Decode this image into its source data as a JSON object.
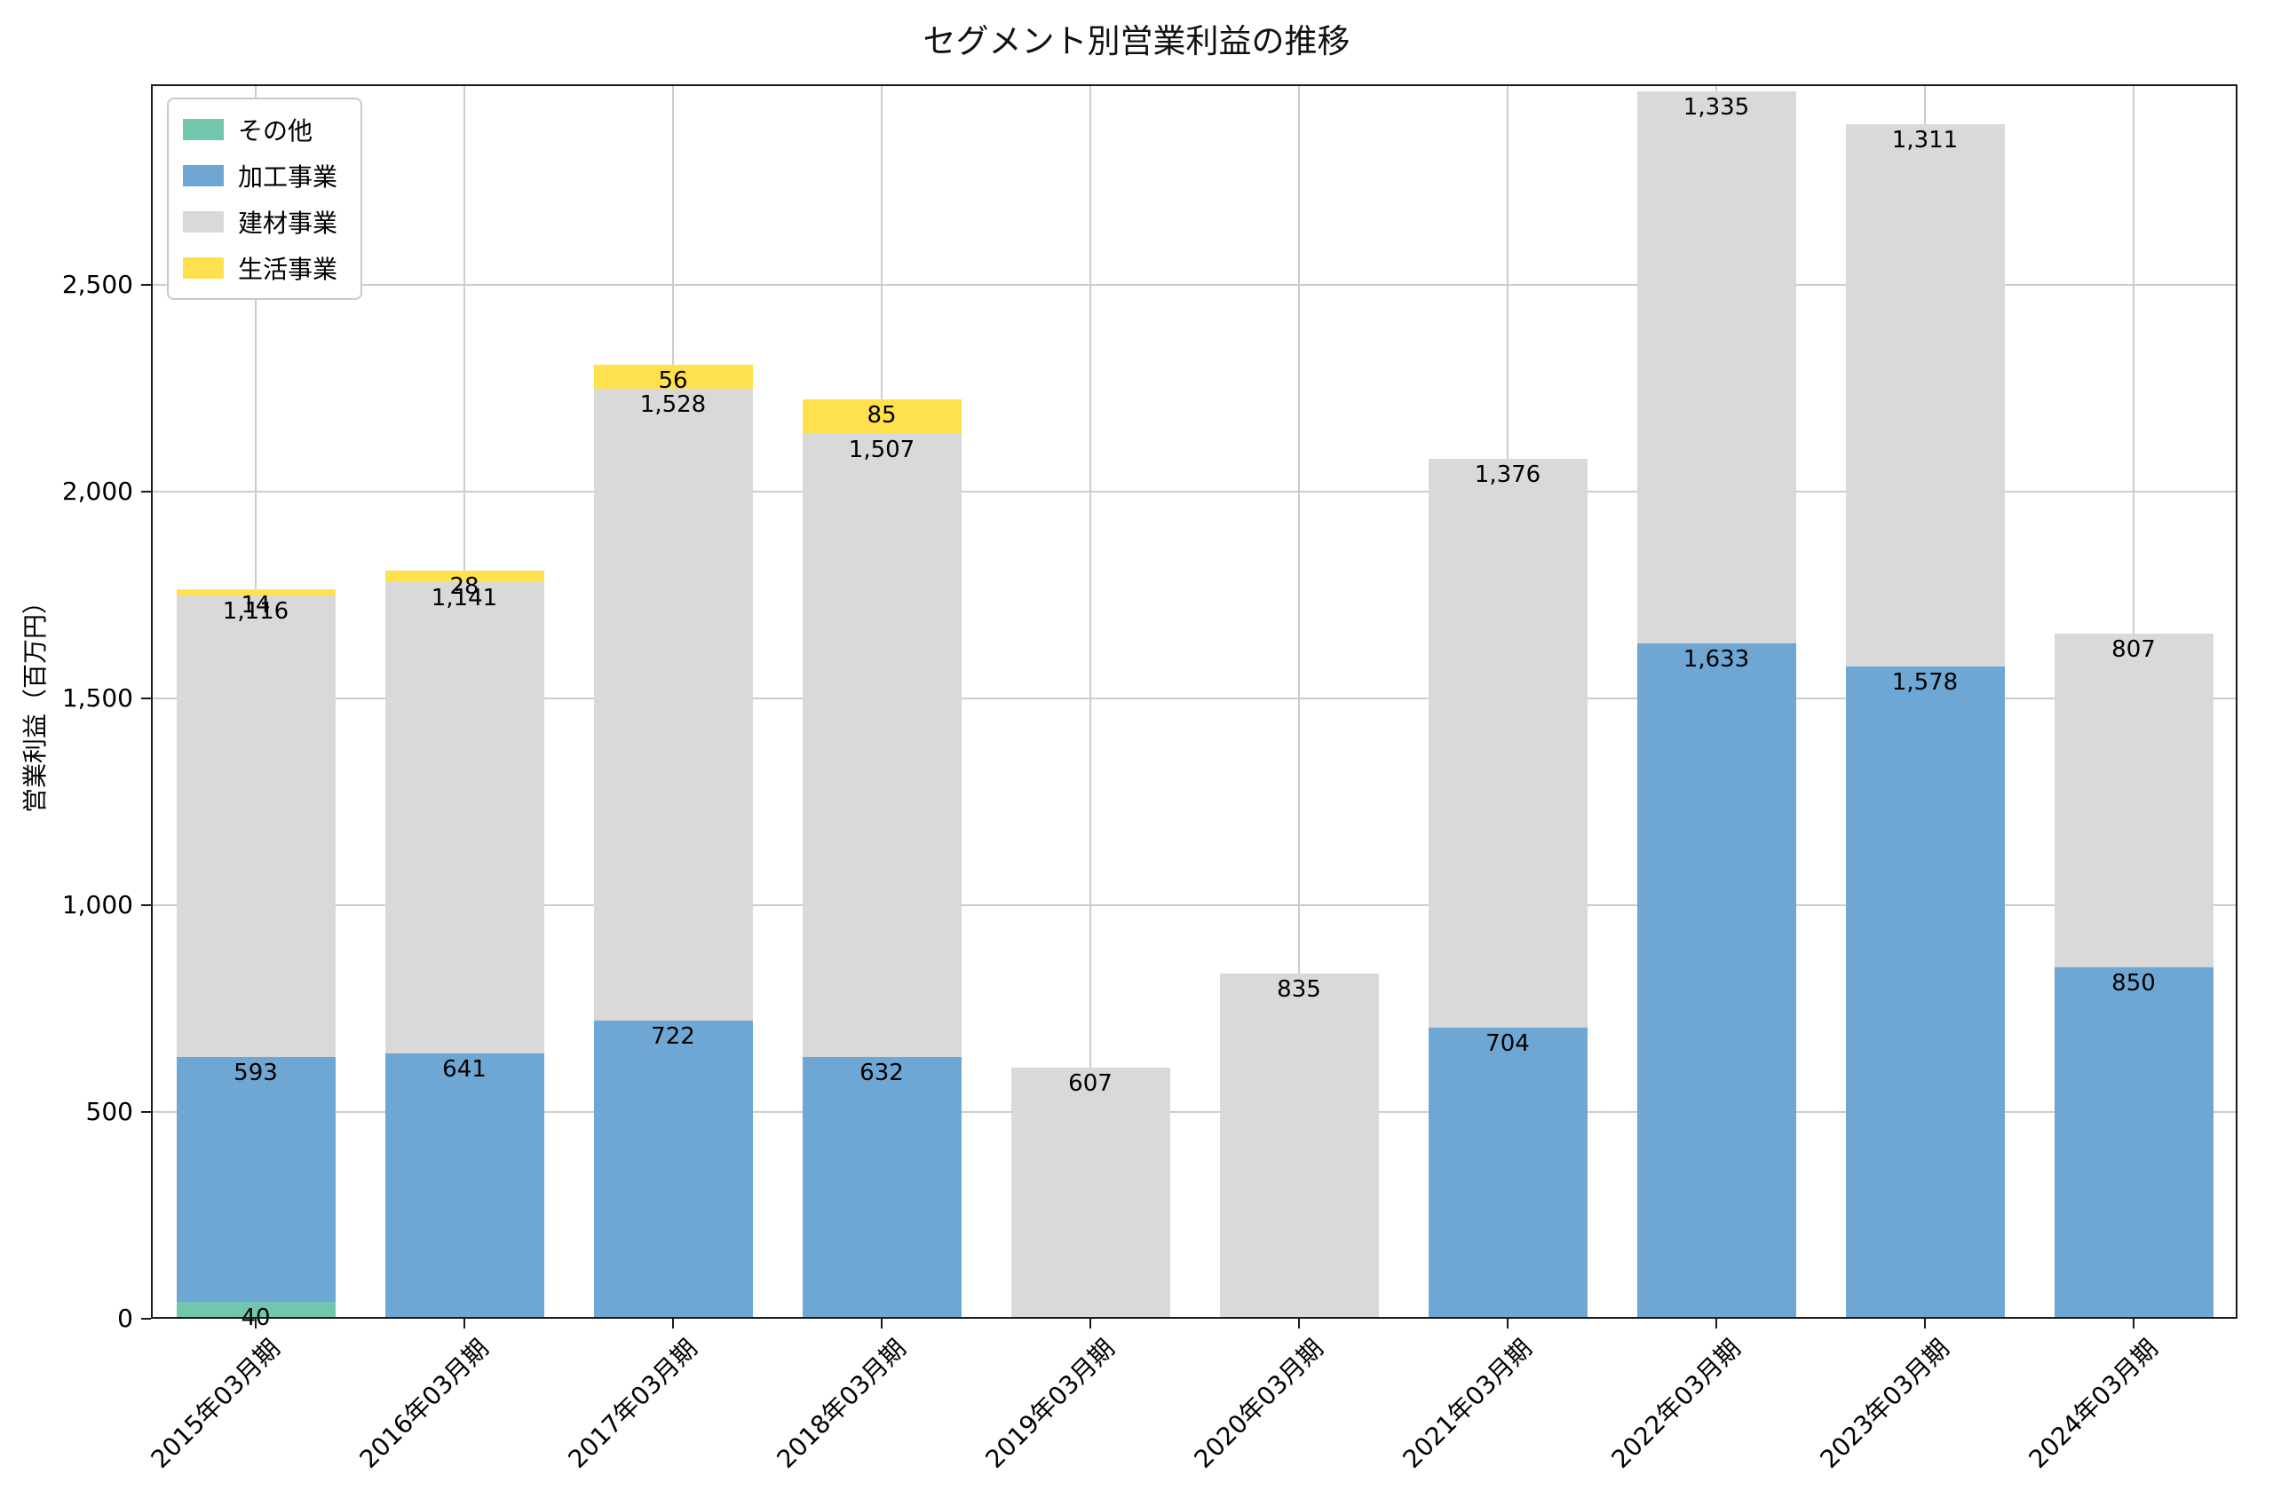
{
  "chart_data": {
    "type": "bar",
    "stacked": true,
    "title": "セグメント別営業利益の推移",
    "ylabel": "営業利益（百万円）",
    "categories": [
      "2015年03月期",
      "2016年03月期",
      "2017年03月期",
      "2018年03月期",
      "2019年03月期",
      "2020年03月期",
      "2021年03月期",
      "2022年03月期",
      "2023年03月期",
      "2024年03月期"
    ],
    "series": [
      {
        "name": "その他",
        "color": "#72c6ae",
        "values": [
          40,
          0,
          0,
          0,
          0,
          0,
          0,
          0,
          0,
          0
        ]
      },
      {
        "name": "加工事業",
        "color": "#6fa7d4",
        "values": [
          593,
          641,
          722,
          632,
          0,
          0,
          704,
          1633,
          1578,
          850
        ]
      },
      {
        "name": "建材事業",
        "color": "#d9d9d9",
        "values": [
          1116,
          1141,
          1528,
          1507,
          607,
          835,
          1376,
          1335,
          1311,
          807
        ]
      },
      {
        "name": "生活事業",
        "color": "#ffe14d",
        "values": [
          14,
          28,
          56,
          85,
          0,
          0,
          0,
          0,
          0,
          0
        ]
      }
    ],
    "yticks": [
      0,
      500,
      1000,
      1500,
      2000,
      2500
    ],
    "ylim": [
      0,
      2985
    ],
    "grid": true,
    "legend_position": "upper left",
    "colors": {
      "grid": "#cccccc",
      "spine": "#1a1a1a",
      "text": "#000000",
      "background": "#ffffff"
    }
  }
}
